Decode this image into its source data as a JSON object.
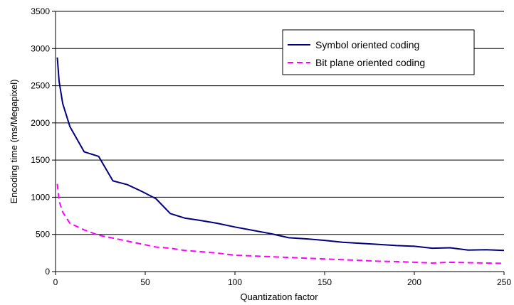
{
  "chart_data": {
    "type": "line",
    "title": "",
    "xlabel": "Quantization factor",
    "ylabel": "Encoding time (ms/Megapixel)",
    "xlim": [
      0,
      250
    ],
    "ylim": [
      0,
      3500
    ],
    "x_ticks": [
      "0",
      "50",
      "100",
      "150",
      "200",
      "250"
    ],
    "y_ticks": [
      "0",
      "500",
      "1000",
      "1500",
      "2000",
      "2500",
      "3000",
      "3500"
    ],
    "grid": "horizontal",
    "legend_position": "top-right",
    "series": [
      {
        "name": "Symbol oriented coding",
        "color": "#000080",
        "style": "solid",
        "x": [
          1,
          2,
          4,
          8,
          16,
          24,
          32,
          40,
          48,
          56,
          64,
          72,
          80,
          90,
          100,
          110,
          120,
          130,
          140,
          150,
          160,
          170,
          180,
          190,
          200,
          210,
          220,
          230,
          240,
          250
        ],
        "y": [
          2880,
          2560,
          2260,
          1950,
          1610,
          1550,
          1220,
          1170,
          1080,
          980,
          780,
          720,
          690,
          650,
          600,
          555,
          510,
          455,
          440,
          420,
          395,
          380,
          365,
          350,
          340,
          315,
          320,
          290,
          295,
          285
        ]
      },
      {
        "name": "Bit plane oriented coding",
        "color": "#ff00ff",
        "style": "dashed",
        "x": [
          1,
          2,
          4,
          8,
          16,
          24,
          32,
          40,
          48,
          56,
          64,
          72,
          80,
          90,
          100,
          110,
          120,
          130,
          140,
          150,
          160,
          170,
          180,
          190,
          200,
          210,
          220,
          230,
          240,
          250
        ],
        "y": [
          1180,
          950,
          800,
          650,
          560,
          490,
          450,
          410,
          370,
          330,
          315,
          285,
          270,
          250,
          220,
          210,
          200,
          190,
          180,
          170,
          160,
          150,
          140,
          135,
          125,
          115,
          125,
          120,
          115,
          110
        ]
      }
    ]
  }
}
